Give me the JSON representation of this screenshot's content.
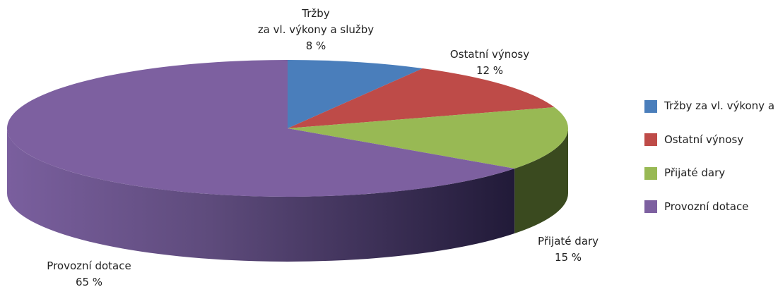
{
  "chart_data": {
    "type": "pie3d",
    "categories": [
      "Tržby\nza vl. výkony a služby",
      "Ostatní výnosy",
      "Přijaté dary",
      "Provozní dotace"
    ],
    "values": [
      8,
      12,
      15,
      65
    ],
    "value_labels": [
      "8 %",
      "12 %",
      "15 %",
      "65 %"
    ],
    "colors": [
      "#4a7ebb",
      "#be4b48",
      "#98b954",
      "#7d60a0"
    ],
    "legend": "right"
  }
}
